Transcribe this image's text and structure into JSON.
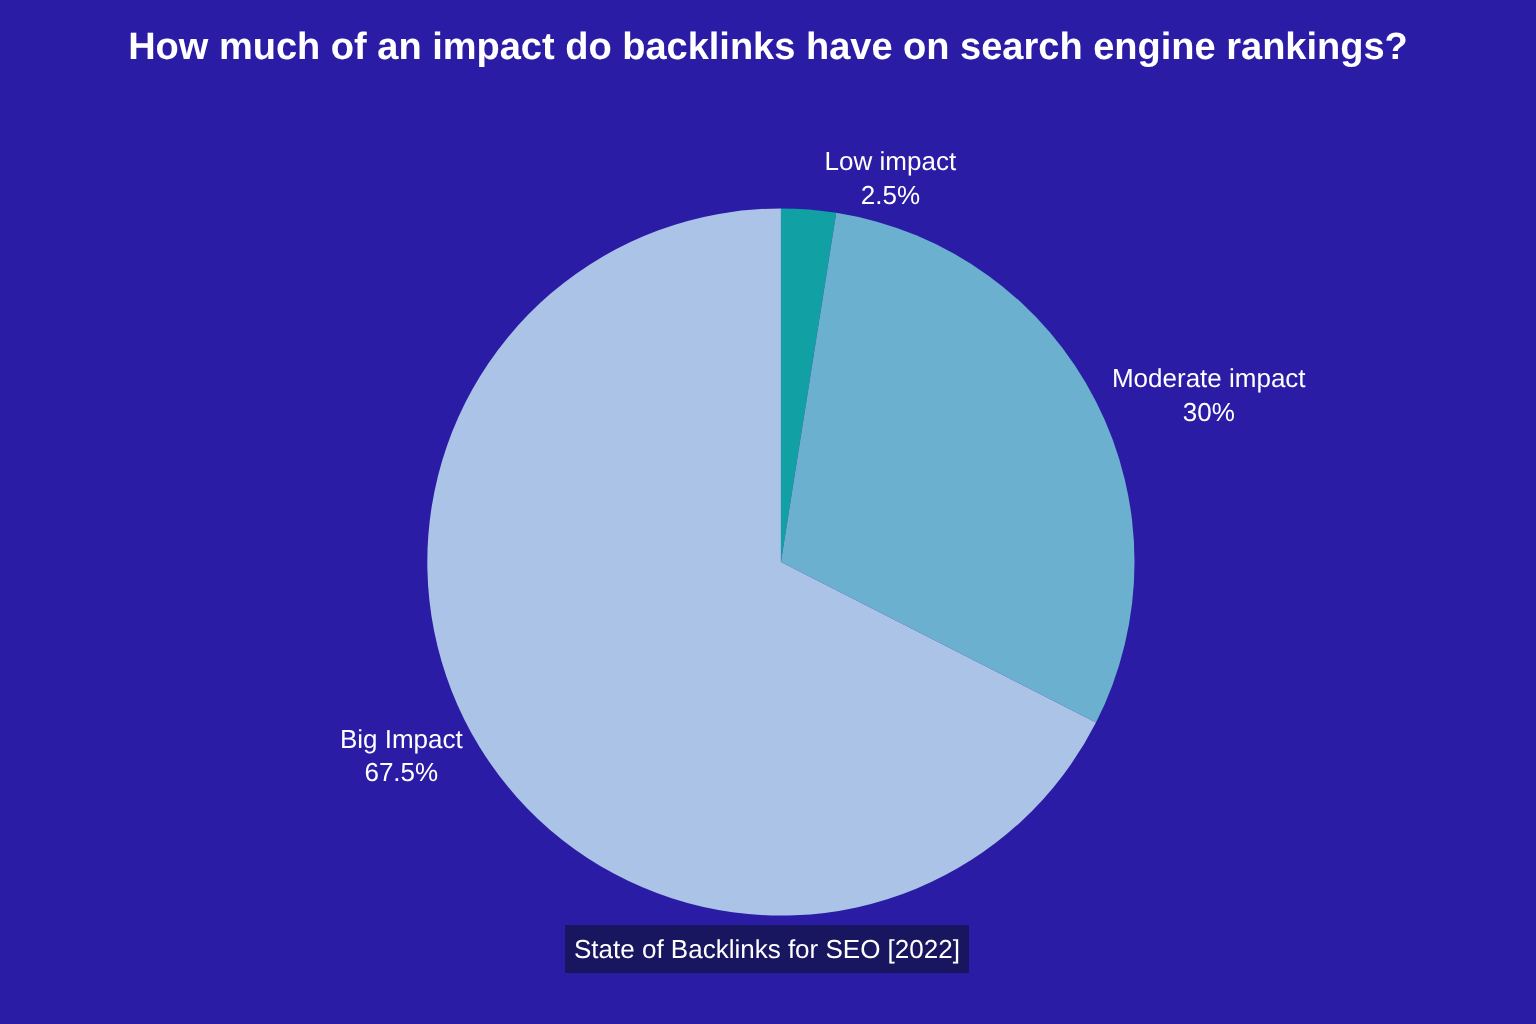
{
  "chart_data": {
    "type": "pie",
    "title": "How much of an impact do backlinks have on search engine rankings?",
    "categories": [
      "Low impact",
      "Moderate impact",
      "Big Impact"
    ],
    "values": [
      2.5,
      30,
      67.5
    ],
    "value_labels": [
      "2.5%",
      "30%",
      "67.5%"
    ],
    "colors": [
      "#11a0a3",
      "#6bb1cf",
      "#abc3e6"
    ],
    "legend": false,
    "annotations": [
      "State of Backlinks for SEO [2022]"
    ]
  }
}
